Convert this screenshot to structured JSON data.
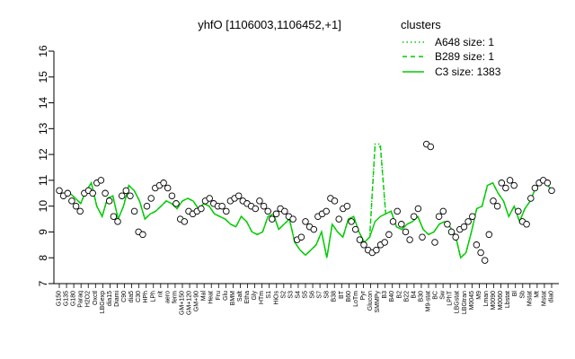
{
  "chart_data": {
    "type": "line",
    "title": "yhfO [1106003,1106452,+1]",
    "ylim": [
      7,
      16
    ],
    "yticks": [
      7,
      8,
      9,
      10,
      11,
      12,
      13,
      14,
      15,
      16
    ],
    "legend": {
      "title": "clusters",
      "placement": "top-right",
      "entries": [
        {
          "label": "A648 size: 1",
          "style": "dotted"
        },
        {
          "label": "B289 size: 1",
          "style": "dashed"
        },
        {
          "label": "C3 size: 1383",
          "style": "solid"
        }
      ]
    },
    "xtick_labels": [
      "G150",
      "G135",
      "G180",
      "Paraq",
      "H2O2",
      "Oxctl",
      "LBGexp",
      "dia15",
      "Diami",
      "C90",
      "dia5",
      "C30",
      "HPh",
      "LPh",
      "nit",
      "aero",
      "ferm",
      "GM+150",
      "GM+120",
      "GM+90",
      "Mal",
      "Heat",
      "Fru",
      "Glu",
      "BMM",
      "Salt",
      "Etha",
      "Gly",
      "HTm",
      "S1",
      "HiOs",
      "S2",
      "S3",
      "S4",
      "S5",
      "S6",
      "S7",
      "S8",
      "B38",
      "BT",
      "B60",
      "LoTm",
      "Pyr",
      "Glucon",
      "SMMPy",
      "B3",
      "B40",
      "B2",
      "B22",
      "B4",
      "B30",
      "M9-stat",
      "BC",
      "Sw",
      "LPhT",
      "LBGstat",
      "LBGtran",
      "M0045",
      "M9",
      "Lman",
      "M0090",
      "M0060",
      "Lbstat",
      "Bl",
      "Sb",
      "Mstat",
      "Mt",
      "Mstat",
      "dia0"
    ],
    "series": [
      {
        "name": "C3 size: 1383",
        "style": "solid",
        "color": "#00cc00",
        "values": [
          10.6,
          10.4,
          10.5,
          10.3,
          10.1,
          10.6,
          10.9,
          10.0,
          9.6,
          10.3,
          10.4,
          9.5,
          10.0,
          10.8,
          10.6,
          10.2,
          9.5,
          9.7,
          9.8,
          10.0,
          10.2,
          10.1,
          9.9,
          10.2,
          10.3,
          10.2,
          9.9,
          10.1,
          10.0,
          9.7,
          9.6,
          9.5,
          9.3,
          9.2,
          9.6,
          9.4,
          9.0,
          8.9,
          9.0,
          9.6,
          9.7,
          9.1,
          9.3,
          9.5,
          8.6,
          8.3,
          8.1,
          8.3,
          8.5,
          9.0,
          8.0,
          9.3,
          9.0,
          8.8,
          9.5,
          9.6,
          9.0,
          8.6,
          8.8,
          9.4,
          9.6,
          9.7,
          9.8,
          9.2,
          9.1,
          9.3,
          9.4,
          9.6,
          9.1,
          8.9,
          9.0,
          9.3,
          9.4,
          9.2,
          8.9,
          8.0,
          8.2,
          9.0,
          9.9,
          10.0,
          10.8,
          10.9,
          10.5,
          10.2,
          9.6,
          10.0,
          9.4,
          9.9,
          10.2,
          10.7,
          10.9,
          10.9,
          10.6
        ]
      },
      {
        "name": "A648 size: 1",
        "style": "dotted",
        "color": "#00cc00",
        "values": [
          10.6,
          10.4,
          10.5,
          10.3,
          10.1,
          10.6,
          10.9,
          10.0,
          9.6,
          10.3,
          10.4,
          9.5,
          10.0,
          10.8,
          10.6,
          10.2,
          9.5,
          9.7,
          9.8,
          10.0,
          10.2,
          10.1,
          9.9,
          10.2,
          10.3,
          10.2,
          9.9,
          10.1,
          10.0,
          9.7,
          9.6,
          9.5,
          9.3,
          9.2,
          9.6,
          9.4,
          9.0,
          8.9,
          9.0,
          9.6,
          9.7,
          9.1,
          9.3,
          9.5,
          8.6,
          8.3,
          8.1,
          8.3,
          8.5,
          9.0,
          8.0,
          9.3,
          9.0,
          8.8,
          9.5,
          9.6,
          9.0,
          8.6,
          8.8,
          12.4,
          12.4,
          9.7,
          9.8,
          9.2,
          9.1,
          9.3,
          9.4,
          9.6,
          9.1,
          8.9,
          9.0,
          9.3,
          9.4,
          9.2,
          8.9,
          8.0,
          8.2,
          9.0,
          9.9,
          10.0,
          10.8,
          10.9,
          10.5,
          10.2,
          9.6,
          10.0,
          9.4,
          9.9,
          10.2,
          10.7,
          10.9,
          10.9,
          10.6
        ]
      },
      {
        "name": "B289 size: 1",
        "style": "dashed",
        "color": "#00cc00",
        "values": [
          10.6,
          10.4,
          10.5,
          10.3,
          10.1,
          10.6,
          10.9,
          10.0,
          9.6,
          10.3,
          10.4,
          9.5,
          10.0,
          10.8,
          10.6,
          10.2,
          9.5,
          9.7,
          9.8,
          10.0,
          10.2,
          10.1,
          9.9,
          10.2,
          10.3,
          10.2,
          9.9,
          10.1,
          10.0,
          9.7,
          9.6,
          9.5,
          9.3,
          9.2,
          9.6,
          9.4,
          9.0,
          8.9,
          9.0,
          9.6,
          9.7,
          9.1,
          9.3,
          9.5,
          8.6,
          8.3,
          8.1,
          8.3,
          8.5,
          9.0,
          8.0,
          9.3,
          9.0,
          8.8,
          9.5,
          9.6,
          9.0,
          8.6,
          8.8,
          12.3,
          12.3,
          9.7,
          9.8,
          9.2,
          9.1,
          9.3,
          9.4,
          9.6,
          9.1,
          8.9,
          9.0,
          9.3,
          9.4,
          9.2,
          8.9,
          8.0,
          8.2,
          9.0,
          9.9,
          10.0,
          10.8,
          10.9,
          10.5,
          10.2,
          9.6,
          10.0,
          9.4,
          9.9,
          10.2,
          10.7,
          10.9,
          10.9,
          10.6
        ]
      }
    ],
    "points": [
      [
        0,
        10.6
      ],
      [
        1,
        10.4
      ],
      [
        2,
        10.5
      ],
      [
        3,
        10.2
      ],
      [
        4,
        10.0
      ],
      [
        5,
        9.8
      ],
      [
        6,
        10.5
      ],
      [
        7,
        10.6
      ],
      [
        8,
        10.5
      ],
      [
        9,
        10.9
      ],
      [
        10,
        11.0
      ],
      [
        11,
        10.5
      ],
      [
        12,
        10.2
      ],
      [
        13,
        9.6
      ],
      [
        14,
        9.4
      ],
      [
        15,
        10.4
      ],
      [
        16,
        10.6
      ],
      [
        17,
        10.4
      ],
      [
        18,
        9.8
      ],
      [
        19,
        9.0
      ],
      [
        20,
        8.9
      ],
      [
        21,
        10.0
      ],
      [
        22,
        10.3
      ],
      [
        23,
        10.7
      ],
      [
        24,
        10.8
      ],
      [
        25,
        10.9
      ],
      [
        26,
        10.7
      ],
      [
        27,
        10.4
      ],
      [
        28,
        10.1
      ],
      [
        29,
        9.5
      ],
      [
        30,
        9.4
      ],
      [
        31,
        9.8
      ],
      [
        32,
        9.7
      ],
      [
        33,
        9.8
      ],
      [
        34,
        9.9
      ],
      [
        35,
        10.2
      ],
      [
        36,
        10.3
      ],
      [
        37,
        10.1
      ],
      [
        38,
        10.0
      ],
      [
        39,
        10.0
      ],
      [
        40,
        9.8
      ],
      [
        41,
        10.2
      ],
      [
        42,
        10.3
      ],
      [
        43,
        10.4
      ],
      [
        44,
        10.2
      ],
      [
        45,
        10.1
      ],
      [
        46,
        10.0
      ],
      [
        47,
        9.9
      ],
      [
        48,
        10.2
      ],
      [
        49,
        10.0
      ],
      [
        50,
        9.8
      ],
      [
        51,
        9.5
      ],
      [
        52,
        9.7
      ],
      [
        53,
        9.9
      ],
      [
        54,
        9.8
      ],
      [
        55,
        9.6
      ],
      [
        56,
        9.5
      ],
      [
        57,
        8.7
      ],
      [
        58,
        8.8
      ],
      [
        59,
        9.4
      ],
      [
        60,
        9.2
      ],
      [
        61,
        9.1
      ],
      [
        62,
        9.6
      ],
      [
        63,
        9.7
      ],
      [
        64,
        9.8
      ],
      [
        65,
        10.3
      ],
      [
        66,
        10.2
      ],
      [
        67,
        9.5
      ],
      [
        68,
        9.9
      ],
      [
        69,
        10.0
      ],
      [
        70,
        9.4
      ],
      [
        71,
        9.1
      ],
      [
        72,
        8.7
      ],
      [
        73,
        8.5
      ],
      [
        74,
        8.3
      ],
      [
        75,
        8.2
      ],
      [
        76,
        8.3
      ],
      [
        77,
        8.5
      ],
      [
        78,
        8.6
      ],
      [
        79,
        8.9
      ],
      [
        80,
        9.4
      ],
      [
        81,
        9.8
      ],
      [
        82,
        9.3
      ],
      [
        83,
        9.0
      ],
      [
        84,
        8.7
      ],
      [
        85,
        9.6
      ],
      [
        86,
        9.9
      ],
      [
        87,
        8.8
      ],
      [
        88,
        12.4
      ],
      [
        89,
        12.3
      ],
      [
        90,
        8.6
      ],
      [
        91,
        9.6
      ],
      [
        92,
        9.8
      ],
      [
        93,
        9.3
      ],
      [
        94,
        9.0
      ],
      [
        95,
        8.8
      ],
      [
        96,
        9.1
      ],
      [
        97,
        9.2
      ],
      [
        98,
        9.4
      ],
      [
        99,
        9.6
      ],
      [
        100,
        8.5
      ],
      [
        101,
        8.2
      ],
      [
        102,
        7.9
      ],
      [
        103,
        8.9
      ],
      [
        104,
        10.2
      ],
      [
        105,
        10.0
      ],
      [
        106,
        10.9
      ],
      [
        107,
        10.7
      ],
      [
        108,
        11.0
      ],
      [
        109,
        10.8
      ],
      [
        110,
        9.8
      ],
      [
        111,
        9.4
      ],
      [
        112,
        9.3
      ],
      [
        113,
        10.3
      ],
      [
        114,
        10.7
      ],
      [
        115,
        10.9
      ],
      [
        116,
        11.0
      ],
      [
        117,
        10.9
      ],
      [
        118,
        10.6
      ]
    ]
  }
}
